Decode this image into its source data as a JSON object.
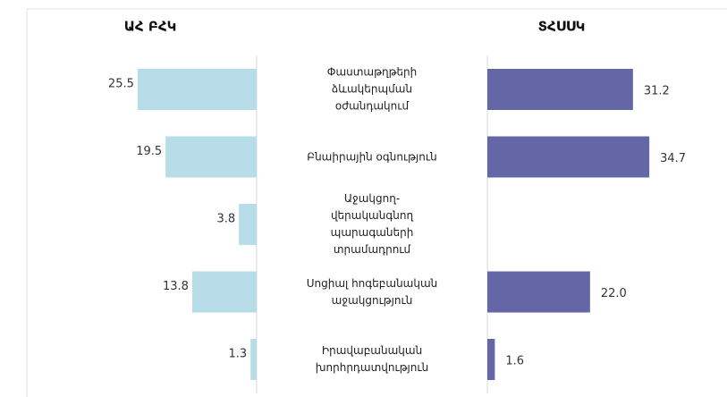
{
  "chart_data": {
    "type": "bar",
    "orientation": "butterfly",
    "categories": [
      "Փաստաթղթերի ձևակերպման օժանդակում",
      "Բնաիրային օգնություն",
      "Աջակցող-վերականգնող պարագաների տրամադրում",
      "Սոցիալ հոգեբանական աջակցություն",
      "Իրավաբանական խորհրդատվություն"
    ],
    "series": [
      {
        "name": "ԱՀ ԲՀԿ",
        "color": "#b7dde8",
        "values": [
          25.5,
          19.5,
          3.8,
          13.8,
          1.3
        ]
      },
      {
        "name": "ՏՀՍՍԿ",
        "color": "#6566a5",
        "values": [
          31.2,
          34.7,
          null,
          22.0,
          1.6
        ],
        "value_labels": [
          "31.2",
          "34.7",
          null,
          "22.0",
          "1.6"
        ]
      }
    ]
  }
}
